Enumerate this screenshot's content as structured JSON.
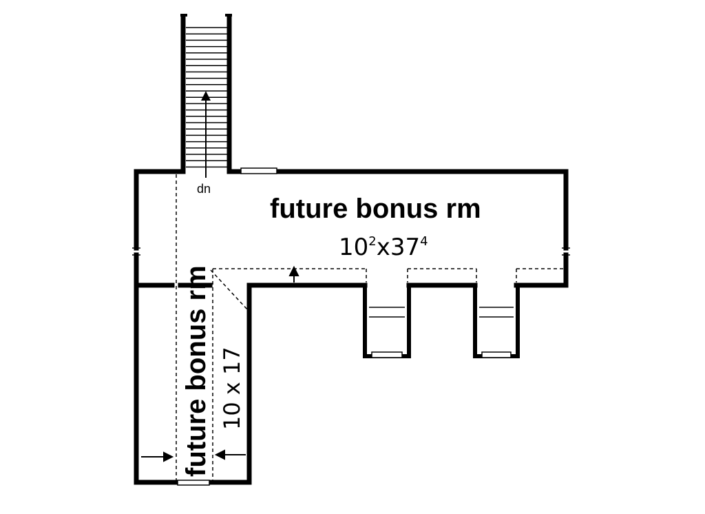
{
  "stair_label": "dn",
  "main_room": {
    "name": "future bonus rm",
    "dim_feet_a": "10",
    "dim_inch_a": "2",
    "dim_sep": "x",
    "dim_feet_b": "37",
    "dim_inch_b": "4"
  },
  "side_room": {
    "name": "future bonus rm",
    "dims": "10 x 17"
  },
  "colors": {
    "wall": "#000000",
    "background": "#ffffff"
  }
}
